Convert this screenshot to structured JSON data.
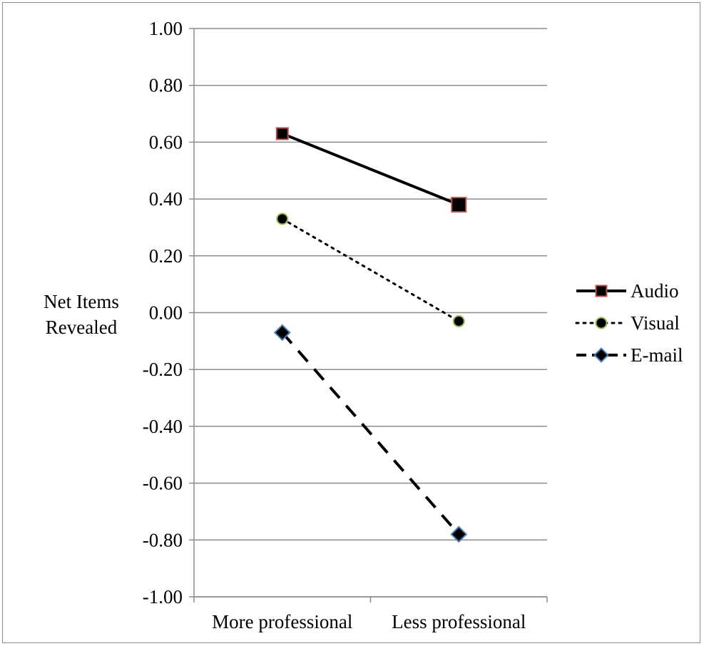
{
  "chart_data": {
    "type": "line",
    "title": "",
    "xlabel": "",
    "ylabel": "Net Items Revealed",
    "ylabel_lines": [
      "Net Items",
      "Revealed"
    ],
    "categories": [
      "More professional",
      "Less professional"
    ],
    "ylim": [
      -1.0,
      1.0
    ],
    "ytick_step": 0.2,
    "yticks": [
      "1.00",
      "0.80",
      "0.60",
      "0.40",
      "0.20",
      "0.00",
      "-0.20",
      "-0.40",
      "-0.60",
      "-0.80",
      "-1.00"
    ],
    "grid": true,
    "legend_position": "right",
    "series": [
      {
        "name": "Audio",
        "values": [
          0.63,
          0.38
        ],
        "line_style": "solid",
        "marker": "square",
        "marker_fill": "#000000",
        "marker_edge": "#c0504d"
      },
      {
        "name": "Visual",
        "values": [
          0.33,
          -0.03
        ],
        "line_style": "dotted",
        "marker": "circle",
        "marker_fill": "#000000",
        "marker_edge": "#9bbb59"
      },
      {
        "name": "E-mail",
        "values": [
          -0.07,
          -0.78
        ],
        "line_style": "dashed",
        "marker": "diamond",
        "marker_fill": "#000000",
        "marker_edge": "#4f81bd"
      }
    ]
  },
  "colors": {
    "gridline": "#8c8c8c",
    "axis": "#8c8c8c",
    "line": "#000000"
  }
}
